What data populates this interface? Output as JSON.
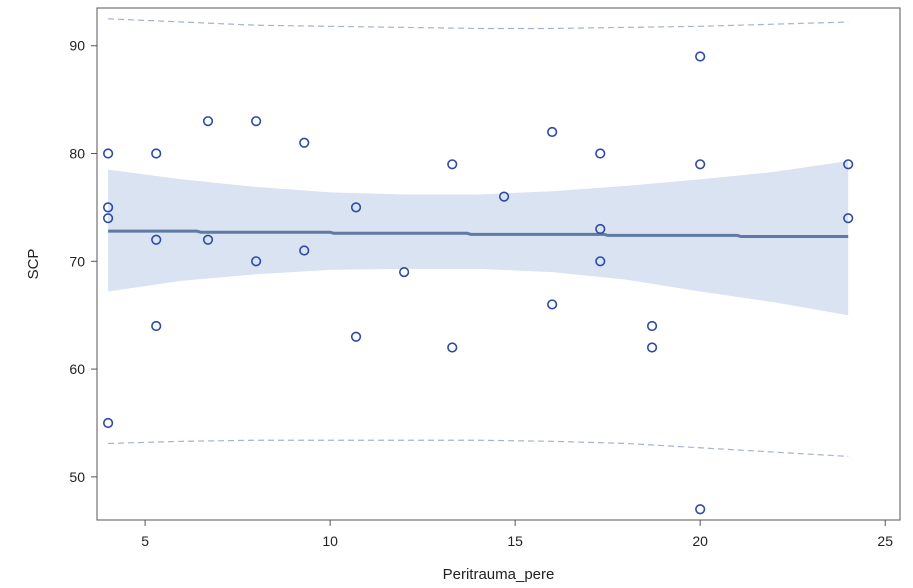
{
  "chart_data": {
    "type": "scatter",
    "title": "",
    "xlabel": "Peritrauma_pere",
    "ylabel": "SCP",
    "xlim": [
      3.7,
      25.4
    ],
    "ylim": [
      46,
      93.5
    ],
    "xticks": [
      5,
      10,
      15,
      20,
      25
    ],
    "yticks": [
      50,
      60,
      70,
      80,
      90
    ],
    "grid": false,
    "legend": "none",
    "points": [
      {
        "x": 4.0,
        "y": 80
      },
      {
        "x": 4.0,
        "y": 75
      },
      {
        "x": 4.0,
        "y": 74
      },
      {
        "x": 4.0,
        "y": 55
      },
      {
        "x": 5.3,
        "y": 80
      },
      {
        "x": 5.3,
        "y": 72
      },
      {
        "x": 5.3,
        "y": 64
      },
      {
        "x": 6.7,
        "y": 83
      },
      {
        "x": 6.7,
        "y": 72
      },
      {
        "x": 8.0,
        "y": 83
      },
      {
        "x": 8.0,
        "y": 70
      },
      {
        "x": 9.3,
        "y": 81
      },
      {
        "x": 9.3,
        "y": 71
      },
      {
        "x": 10.7,
        "y": 75
      },
      {
        "x": 10.7,
        "y": 63
      },
      {
        "x": 12.0,
        "y": 69
      },
      {
        "x": 13.3,
        "y": 79
      },
      {
        "x": 13.3,
        "y": 62
      },
      {
        "x": 14.7,
        "y": 76
      },
      {
        "x": 16.0,
        "y": 82
      },
      {
        "x": 16.0,
        "y": 66
      },
      {
        "x": 17.3,
        "y": 80
      },
      {
        "x": 17.3,
        "y": 73
      },
      {
        "x": 17.3,
        "y": 70
      },
      {
        "x": 18.7,
        "y": 64
      },
      {
        "x": 18.7,
        "y": 62
      },
      {
        "x": 20.0,
        "y": 89
      },
      {
        "x": 20.0,
        "y": 79
      },
      {
        "x": 20.0,
        "y": 47
      },
      {
        "x": 24.0,
        "y": 79
      },
      {
        "x": 24.0,
        "y": 74
      }
    ],
    "fit_line": [
      {
        "x": 4.0,
        "y": 72.8
      },
      {
        "x": 6.4,
        "y": 72.8
      },
      {
        "x": 6.5,
        "y": 72.7
      },
      {
        "x": 10.0,
        "y": 72.7
      },
      {
        "x": 10.1,
        "y": 72.6
      },
      {
        "x": 13.7,
        "y": 72.6
      },
      {
        "x": 13.8,
        "y": 72.5
      },
      {
        "x": 17.4,
        "y": 72.5
      },
      {
        "x": 17.5,
        "y": 72.4
      },
      {
        "x": 21.0,
        "y": 72.4
      },
      {
        "x": 21.1,
        "y": 72.3
      },
      {
        "x": 24.0,
        "y": 72.3
      }
    ],
    "confidence_band": {
      "x": [
        4,
        6,
        8,
        10,
        12,
        14,
        16,
        18,
        20,
        22,
        24
      ],
      "lower": [
        67.2,
        68.2,
        68.8,
        69.2,
        69.3,
        69.3,
        69.0,
        68.3,
        67.2,
        66.2,
        65.0
      ],
      "upper": [
        78.5,
        77.6,
        76.9,
        76.4,
        76.2,
        76.2,
        76.5,
        77.0,
        77.6,
        78.3,
        79.3
      ]
    },
    "prediction_band": {
      "x": [
        4,
        6,
        8,
        10,
        12,
        14,
        16,
        18,
        20,
        22,
        24
      ],
      "lower": [
        53.1,
        53.3,
        53.4,
        53.4,
        53.4,
        53.4,
        53.3,
        53.1,
        52.7,
        52.3,
        51.9
      ],
      "upper": [
        92.5,
        92.2,
        91.9,
        91.8,
        91.7,
        91.6,
        91.6,
        91.7,
        91.8,
        92.0,
        92.2
      ]
    },
    "colors": {
      "marker": "#2b4aa8",
      "fit_line": "#5f7aa3",
      "confidence_fill": "#d9e3f2",
      "prediction_line": "#a6b1d4",
      "axis": "#555555"
    }
  }
}
